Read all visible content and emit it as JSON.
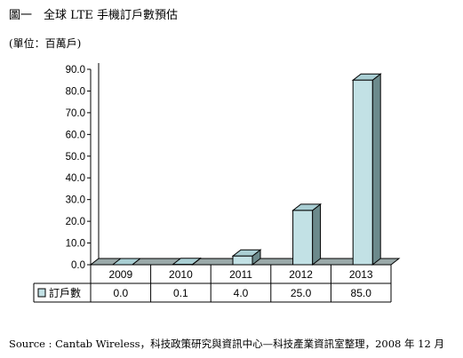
{
  "header": {
    "title": "圖一　全球 LTE 手機訂戶數預估",
    "unit_note": "(單位：百萬戶)"
  },
  "footer": {
    "source": "Source : Cantab Wireless，科技政策研究與資訊中心—科技產業資訊室整理，2008 年 12 月"
  },
  "colors": {
    "bar_front": "#c2e1e5",
    "bar_top": "#a9ced3",
    "bar_side": "#6c8a8c",
    "floor": "#9aa9a9",
    "axis": "#000000"
  },
  "chart_data": {
    "type": "bar",
    "categories": [
      "2009",
      "2010",
      "2011",
      "2012",
      "2013"
    ],
    "series": [
      {
        "name": "訂戶數",
        "values": [
          0.0,
          0.1,
          4.0,
          25.0,
          85.0
        ],
        "labels": [
          "0.0",
          "0.1",
          "4.0",
          "25.0",
          "85.0"
        ]
      }
    ],
    "yticks": [
      "0.0",
      "10.0",
      "20.0",
      "30.0",
      "40.0",
      "50.0",
      "60.0",
      "70.0",
      "80.0",
      "90.0"
    ],
    "ylim": [
      0,
      90
    ],
    "title": "",
    "xlabel": "",
    "ylabel": "",
    "legend": "data-table",
    "grid": false
  }
}
